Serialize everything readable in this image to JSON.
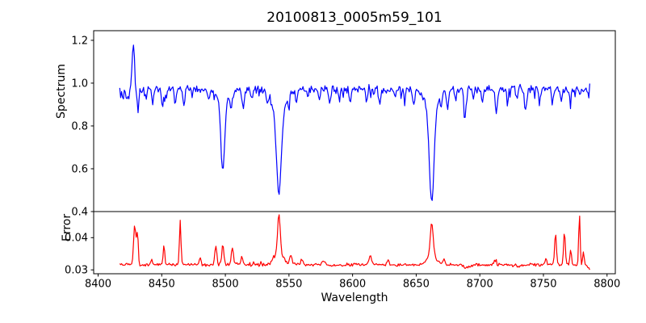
{
  "figure": {
    "title": "20100813_0005m59_101",
    "xlabel": "Wavelength",
    "ylabel_top": "Spectrum",
    "ylabel_bottom": "Error",
    "background": "#ffffff",
    "frame_color": "#000000",
    "text_color": "#000000"
  },
  "chart_data": [
    {
      "panel": "top",
      "type": "line",
      "title": "20100813_0005m59_101",
      "ylabel": "Spectrum",
      "series_name": "spectrum",
      "color": "#0000ff",
      "xlim": [
        8396.5,
        8806.5
      ],
      "ylim": [
        0.4,
        1.245
      ],
      "yticks": [
        0.4,
        0.6,
        0.8,
        1.0,
        1.2
      ],
      "yticklabels": [
        "0.4",
        "0.6",
        "0.8",
        "1.0",
        "1.2"
      ],
      "grid": false,
      "legend": "none",
      "x_range": [
        8417,
        8786.4
      ],
      "description": "Normalized stellar spectrum, continuum near 0.97, Ca II triplet absorption lines at 8498, 8542, 8662 A, emission-like spike at 8427.5 A",
      "key_points": [
        [
          8417,
          0.97
        ],
        [
          8419.5,
          0.92
        ],
        [
          8427.5,
          1.19
        ],
        [
          8431,
          0.88
        ],
        [
          8450.8,
          0.9
        ],
        [
          8467.5,
          0.9
        ],
        [
          8498,
          0.59
        ],
        [
          8504.5,
          0.9
        ],
        [
          8514,
          0.88
        ],
        [
          8542,
          0.49
        ],
        [
          8582,
          0.9
        ],
        [
          8598,
          0.9
        ],
        [
          8621.5,
          0.9
        ],
        [
          8648,
          0.9
        ],
        [
          8662,
          0.44
        ],
        [
          8674.8,
          0.87
        ],
        [
          8688.5,
          0.85
        ],
        [
          8702,
          0.91
        ],
        [
          8713,
          0.84
        ],
        [
          8736,
          0.85
        ],
        [
          8786,
          0.96
        ]
      ],
      "generator": {
        "x_start": 8417,
        "x_end": 8786.4,
        "n_points": 514,
        "seed": 12345,
        "base": 0.972,
        "noise": 0.02,
        "down_spike_prob": 0.08,
        "down_spike_amp": 0.045,
        "up_spike_prob": 0.03,
        "up_spike_amp": 0.02,
        "features": [
          [
            8419.5,
            -0.055,
            0.7
          ],
          [
            8424.0,
            -0.04,
            0.6
          ],
          [
            8427.6,
            0.225,
            0.85
          ],
          [
            8431.3,
            -0.095,
            0.8
          ],
          [
            8437,
            -0.04,
            0.7
          ],
          [
            8443,
            -0.05,
            0.7
          ],
          [
            8450.8,
            -0.075,
            0.8
          ],
          [
            8461,
            -0.045,
            0.7
          ],
          [
            8467.5,
            -0.075,
            0.8
          ],
          [
            8474,
            -0.04,
            0.6
          ],
          [
            8487,
            -0.045,
            0.7
          ],
          [
            8498.0,
            -0.33,
            1.5
          ],
          [
            8498.0,
            -0.055,
            4.5
          ],
          [
            8504.5,
            -0.075,
            0.9
          ],
          [
            8514.0,
            -0.09,
            0.9
          ],
          [
            8521,
            -0.05,
            0.7
          ],
          [
            8533,
            -0.045,
            0.7
          ],
          [
            8542.1,
            -0.38,
            1.9
          ],
          [
            8542.1,
            -0.105,
            5.0
          ],
          [
            8549.5,
            -0.05,
            0.8
          ],
          [
            8556,
            -0.055,
            0.7
          ],
          [
            8565,
            -0.04,
            0.7
          ],
          [
            8574,
            -0.045,
            0.7
          ],
          [
            8582,
            -0.065,
            0.8
          ],
          [
            8589.5,
            -0.04,
            0.7
          ],
          [
            8598,
            -0.065,
            0.8
          ],
          [
            8611,
            -0.055,
            0.7
          ],
          [
            8621.5,
            -0.07,
            0.8
          ],
          [
            8633,
            -0.04,
            0.7
          ],
          [
            8641,
            -0.045,
            0.7
          ],
          [
            8648,
            -0.07,
            0.8
          ],
          [
            8662.2,
            -0.42,
            1.8
          ],
          [
            8662.2,
            -0.105,
            4.5
          ],
          [
            8669.5,
            -0.055,
            0.7
          ],
          [
            8674.8,
            -0.095,
            0.8
          ],
          [
            8681,
            -0.05,
            0.7
          ],
          [
            8688.5,
            -0.125,
            0.9
          ],
          [
            8695,
            -0.05,
            0.7
          ],
          [
            8702,
            -0.06,
            0.7
          ],
          [
            8713,
            -0.115,
            0.8
          ],
          [
            8722,
            -0.05,
            0.7
          ],
          [
            8729,
            -0.045,
            0.7
          ],
          [
            8736,
            -0.105,
            0.9
          ],
          [
            8747,
            -0.05,
            0.7
          ],
          [
            8757,
            -0.06,
            0.7
          ],
          [
            8764,
            -0.045,
            0.7
          ],
          [
            8771,
            -0.06,
            0.7
          ],
          [
            8779,
            -0.04,
            0.6
          ]
        ]
      }
    },
    {
      "panel": "bottom",
      "type": "line",
      "ylabel": "Error",
      "xlabel": "Wavelength",
      "series_name": "error",
      "color": "#ff0000",
      "xlim": [
        8396.5,
        8806.5
      ],
      "ylim": [
        0.0288,
        0.0481
      ],
      "yticks": [
        0.03,
        0.04
      ],
      "yticklabels": [
        "0.03",
        "0.04"
      ],
      "xticks": [
        8400,
        8450,
        8500,
        8550,
        8600,
        8650,
        8700,
        8750,
        8800
      ],
      "xticklabels": [
        "8400",
        "8450",
        "8500",
        "8550",
        "8600",
        "8650",
        "8700",
        "8750",
        "8800"
      ],
      "grid": false,
      "legend": "none",
      "x_range": [
        8417,
        8786.4
      ],
      "description": "Error spectrum, baseline near 0.0316 with spikes coincident with spectral features",
      "key_points": [
        [
          8417,
          0.0315
        ],
        [
          8429,
          0.0445
        ],
        [
          8451.8,
          0.038
        ],
        [
          8464.5,
          0.0455
        ],
        [
          8492.5,
          0.0375
        ],
        [
          8498,
          0.038
        ],
        [
          8505.5,
          0.037
        ],
        [
          8542,
          0.0472
        ],
        [
          8551.5,
          0.0345
        ],
        [
          8614,
          0.034
        ],
        [
          8662,
          0.0448
        ],
        [
          8759.5,
          0.042
        ],
        [
          8766.5,
          0.042
        ],
        [
          8778.3,
          0.0475
        ],
        [
          8786,
          0.0302
        ]
      ],
      "generator": {
        "x_start": 8417,
        "x_end": 8786.4,
        "n_points": 514,
        "seed": 999,
        "base": 0.0316,
        "noise": 0.00055,
        "down_spike_prob": 0.0,
        "down_spike_amp": 0.0,
        "up_spike_prob": 0.06,
        "up_spike_amp": 0.001,
        "features": [
          [
            8428.7,
            0.0125,
            0.8
          ],
          [
            8430.8,
            0.01,
            0.7
          ],
          [
            8442,
            0.0015,
            0.8
          ],
          [
            8451.8,
            0.0062,
            0.6
          ],
          [
            8464.5,
            0.0138,
            0.6
          ],
          [
            8480,
            0.002,
            0.8
          ],
          [
            8492.5,
            0.0058,
            0.8
          ],
          [
            8498.0,
            0.006,
            0.8
          ],
          [
            8505.5,
            0.0052,
            0.8
          ],
          [
            8513,
            0.0025,
            0.8
          ],
          [
            8542.1,
            0.0118,
            1.0
          ],
          [
            8542.1,
            0.0038,
            3.5
          ],
          [
            8551.5,
            0.003,
            0.9
          ],
          [
            8560,
            0.0015,
            0.8
          ],
          [
            8577,
            0.0012,
            0.9
          ],
          [
            8614,
            0.0026,
            1.1
          ],
          [
            8628,
            0.0012,
            0.8
          ],
          [
            8662.2,
            0.0102,
            1.1
          ],
          [
            8662.2,
            0.003,
            3.5
          ],
          [
            8672,
            0.0018,
            0.8
          ],
          [
            8690,
            -0.0008,
            3.0
          ],
          [
            8712,
            0.0015,
            0.8
          ],
          [
            8730,
            -0.0006,
            3.0
          ],
          [
            8752,
            0.002,
            0.7
          ],
          [
            8759.5,
            0.01,
            0.7
          ],
          [
            8766.5,
            0.01,
            0.7
          ],
          [
            8771.5,
            0.0045,
            0.6
          ],
          [
            8778.3,
            0.0158,
            0.55
          ],
          [
            8781.5,
            0.004,
            0.6
          ],
          [
            8786,
            -0.0013,
            1.2
          ]
        ]
      }
    }
  ]
}
